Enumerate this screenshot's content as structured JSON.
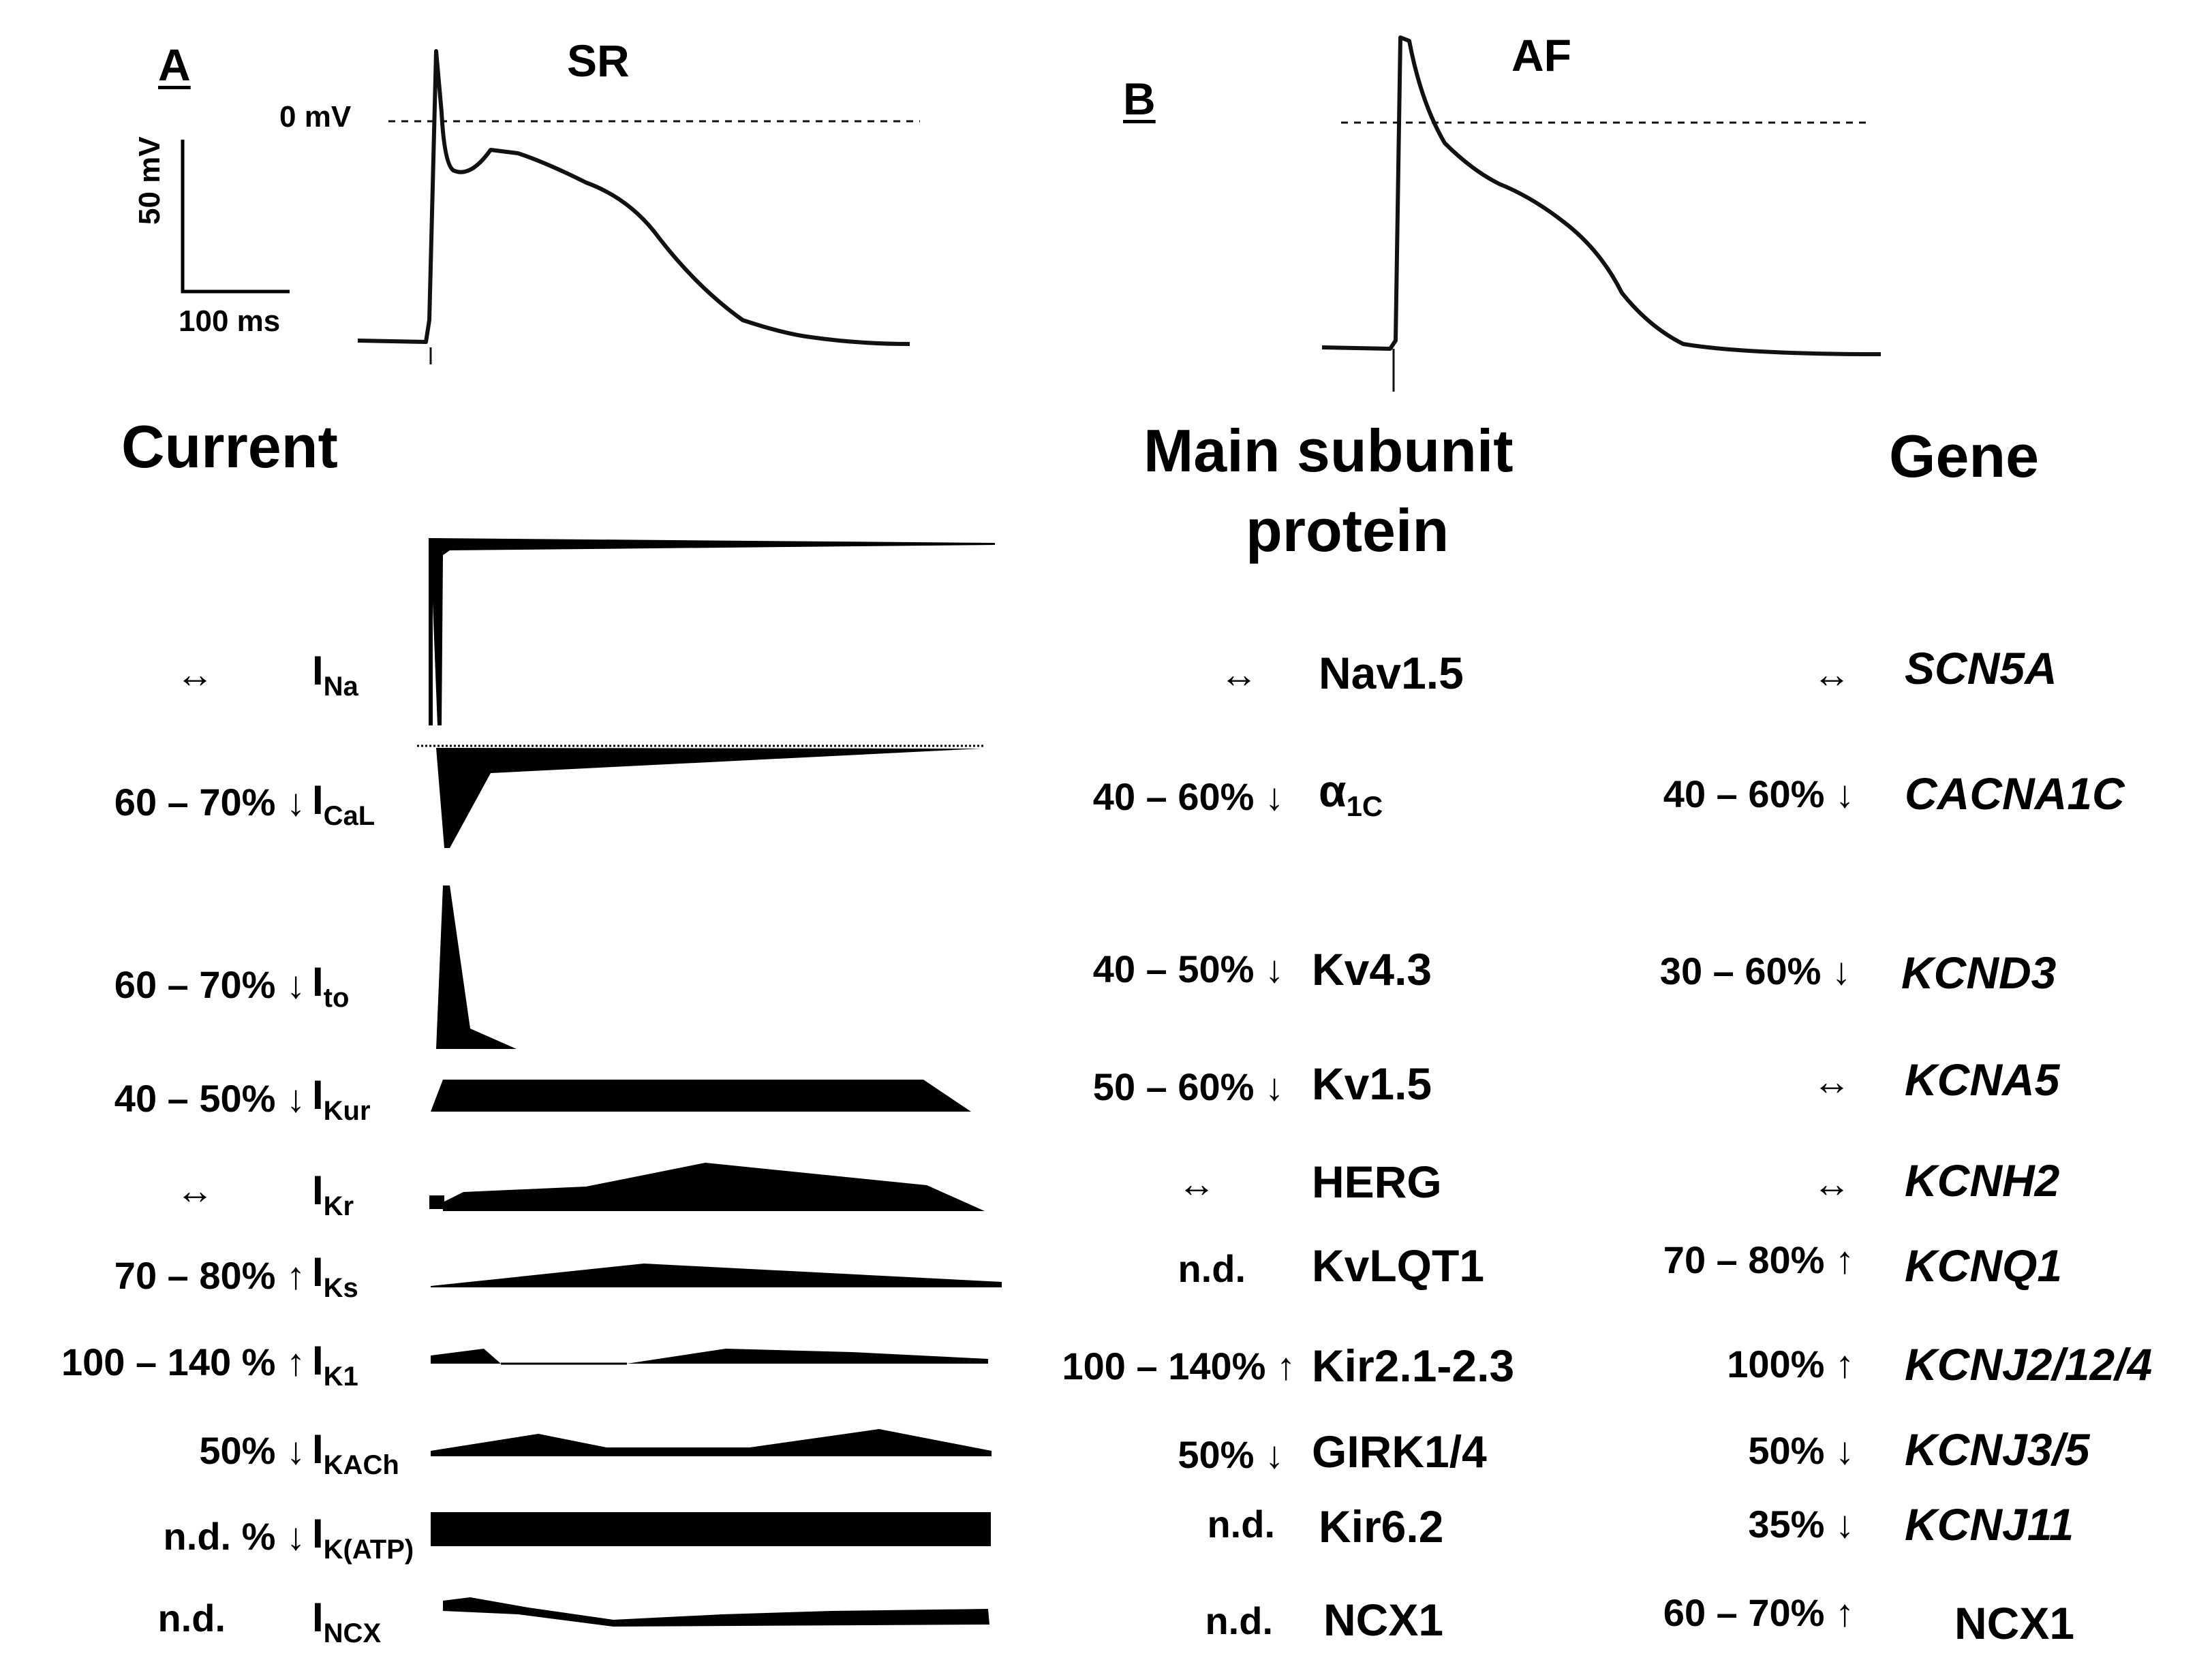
{
  "panels": {
    "a": "A",
    "b": "B"
  },
  "traces": {
    "sr_label": "SR",
    "af_label": "AF",
    "zero_label": "0 mV",
    "scale_v": "50 mV",
    "scale_t": "100 ms"
  },
  "headers": {
    "current": "Current",
    "protein_line1": "Main subunit",
    "protein_line2": "protein",
    "gene": "Gene"
  },
  "rows": [
    {
      "cur_change": "↔",
      "cur_base": "I",
      "cur_sub": "Na",
      "prot_change": "↔",
      "protein": "Nav1.5",
      "prot_sub": "",
      "gene_change": "↔",
      "gene": "SCN5A"
    },
    {
      "cur_change": "60 – 70% ↓",
      "cur_base": "I",
      "cur_sub": "CaL",
      "prot_change": "40 – 60% ↓",
      "protein": "α",
      "prot_sub": "1C",
      "gene_change": "40 –  60% ↓",
      "gene": "CACNA1C"
    },
    {
      "cur_change": "60 – 70% ↓",
      "cur_base": "I",
      "cur_sub": "to",
      "prot_change": "40 – 50% ↓",
      "protein": "Kv4.3",
      "prot_sub": "",
      "gene_change": "30 – 60% ↓",
      "gene": "KCND3"
    },
    {
      "cur_change": "40 – 50% ↓",
      "cur_base": "I",
      "cur_sub": "Kur",
      "prot_change": "50 – 60% ↓",
      "protein": "Kv1.5",
      "prot_sub": "",
      "gene_change": "↔",
      "gene": "KCNA5"
    },
    {
      "cur_change": "↔",
      "cur_base": "I",
      "cur_sub": "Kr",
      "prot_change": "↔",
      "protein": "HERG",
      "prot_sub": "",
      "gene_change": "↔",
      "gene": "KCNH2"
    },
    {
      "cur_change": "70 – 80% ↑",
      "cur_base": "I",
      "cur_sub": "Ks",
      "prot_change": "n.d.",
      "protein": "KvLQT1",
      "prot_sub": "",
      "gene_change": "70 – 80% ↑",
      "gene": "KCNQ1"
    },
    {
      "cur_change": "100 – 140 % ↑",
      "cur_base": "I",
      "cur_sub": "K1",
      "prot_change": "100 – 140% ↑",
      "protein": "Kir2.1-2.3",
      "prot_sub": "",
      "gene_change": "100% ↑",
      "gene": "KCNJ2/12/4"
    },
    {
      "cur_change": "50% ↓",
      "cur_base": "I",
      "cur_sub": "KACh",
      "prot_change": "50% ↓",
      "protein": "GIRK1/4",
      "prot_sub": "",
      "gene_change": "50% ↓",
      "gene": "KCNJ3/5"
    },
    {
      "cur_change": "n.d. % ↓",
      "cur_base": "I",
      "cur_sub": "K(ATP)",
      "prot_change": "n.d.",
      "protein": "Kir6.2",
      "prot_sub": "",
      "gene_change": "35% ↓",
      "gene": "KCNJ11"
    },
    {
      "cur_change": "n.d.",
      "cur_base": "I",
      "cur_sub": "NCX",
      "prot_change": "n.d.",
      "protein": "NCX1",
      "prot_sub": "",
      "gene_change": "60 – 70% ↑",
      "gene": "NCX1"
    }
  ]
}
